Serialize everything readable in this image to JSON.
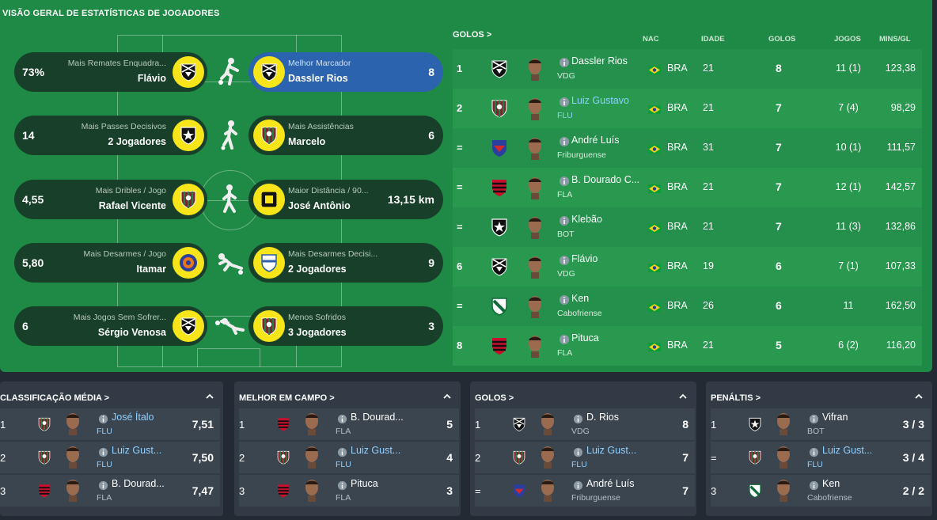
{
  "page_title": "VISÃO GERAL DE ESTATÍSTICAS DE JOGADORES",
  "colors": {
    "pitch": "#1f8a45",
    "pill": "#173f2a",
    "active": "#2b63ae",
    "badge": "#f7e51a",
    "card": "#313a45",
    "link": "#8fd0ff"
  },
  "stats": [
    {
      "left": {
        "value": "73%",
        "label": "Mais Remates Enquadra...",
        "name": "Flávio",
        "crest": "vasco-crest"
      },
      "figure": "shooting-player-icon",
      "right": {
        "value": "8",
        "label": "Melhor Marcador",
        "name": "Dassler Rios",
        "crest": "vasco-crest",
        "active": true
      }
    },
    {
      "left": {
        "value": "14",
        "label": "Mais Passes Decisivos",
        "name": "2 Jogadores",
        "crest": "botafogo-crest"
      },
      "figure": "passing-player-icon",
      "right": {
        "value": "6",
        "label": "Mais Assistências",
        "name": "Marcelo",
        "crest": "fluminense-crest"
      }
    },
    {
      "left": {
        "value": "4,55",
        "label": "Mais Dribles / Jogo",
        "name": "Rafael Vicente",
        "crest": "fluminense-crest"
      },
      "figure": "running-player-icon",
      "right": {
        "value": "13,15 km",
        "label": "Maior Distância / 90...",
        "name": "José Antônio",
        "crest": "volta-redonda-crest"
      }
    },
    {
      "left": {
        "value": "5,80",
        "label": "Mais Desarmes / Jogo",
        "name": "Itamar",
        "crest": "madureira-crest"
      },
      "figure": "tackling-player-icon",
      "right": {
        "value": "9",
        "label": "Mais Desarmes Decisi...",
        "name": "2 Jogadores",
        "crest": "nova-iguacu-crest"
      }
    },
    {
      "left": {
        "value": "6",
        "label": "Mais Jogos Sem Sofrer...",
        "name": "Sérgio Venosa",
        "crest": "vasco-crest"
      },
      "figure": "goalkeeper-dive-icon",
      "right": {
        "value": "3",
        "label": "Menos Sofridos",
        "name": "3 Jogadores",
        "crest": "fluminense-crest"
      }
    }
  ],
  "golos_table": {
    "title": "GOLOS >",
    "headers": {
      "nac": "NAC",
      "idade": "IDADE",
      "golos": "GOLOS",
      "jogos": "JOGOS",
      "mins": "MINS/GL"
    },
    "rows": [
      {
        "pos": "1",
        "crest": "vasco-crest",
        "name": "Dassler Rios",
        "club": "VDG",
        "link": false,
        "nac": "BRA",
        "age": "21",
        "goals": "8",
        "games": "11 (1)",
        "mins": "123,38"
      },
      {
        "pos": "2",
        "crest": "fluminense-crest",
        "name": "Luiz Gustavo",
        "club": "FLU",
        "link": true,
        "nac": "BRA",
        "age": "21",
        "goals": "7",
        "games": "7 (4)",
        "mins": "98,29"
      },
      {
        "pos": "=",
        "crest": "friburguense-crest",
        "name": "André Luís",
        "club": "Friburguense",
        "link": false,
        "nac": "BRA",
        "age": "31",
        "goals": "7",
        "games": "10 (1)",
        "mins": "111,57"
      },
      {
        "pos": "=",
        "crest": "flamengo-crest",
        "name": "B. Dourado C...",
        "club": "FLA",
        "link": false,
        "nac": "BRA",
        "age": "21",
        "goals": "7",
        "games": "12 (1)",
        "mins": "142,57"
      },
      {
        "pos": "=",
        "crest": "botafogo-crest",
        "name": "Klebão",
        "club": "BOT",
        "link": false,
        "nac": "BRA",
        "age": "21",
        "goals": "7",
        "games": "11 (3)",
        "mins": "132,86"
      },
      {
        "pos": "6",
        "crest": "vasco-crest",
        "name": "Flávio",
        "club": "VDG",
        "link": false,
        "nac": "BRA",
        "age": "19",
        "goals": "6",
        "games": "7 (1)",
        "mins": "107,33"
      },
      {
        "pos": "=",
        "crest": "cabofriense-crest",
        "name": "Ken",
        "club": "Cabofriense",
        "link": false,
        "nac": "BRA",
        "age": "26",
        "goals": "6",
        "games": "11",
        "mins": "162,50"
      },
      {
        "pos": "8",
        "crest": "flamengo-crest",
        "name": "Pituca",
        "club": "FLA",
        "link": false,
        "nac": "BRA",
        "age": "21",
        "goals": "5",
        "games": "6 (2)",
        "mins": "116,20"
      }
    ]
  },
  "cards": [
    {
      "title": "CLASSIFICAÇÃO MÉDIA >",
      "rows": [
        {
          "pos": "1",
          "crest": "fluminense-crest",
          "name": "José Ítalo",
          "club": "FLU",
          "link": true,
          "value": "7,51"
        },
        {
          "pos": "2",
          "crest": "fluminense-crest",
          "name": "Luiz Gust...",
          "club": "FLU",
          "link": true,
          "value": "7,50"
        },
        {
          "pos": "3",
          "crest": "flamengo-crest",
          "name": "B. Dourad...",
          "club": "FLA",
          "link": false,
          "value": "7,47"
        }
      ]
    },
    {
      "title": "MELHOR EM CAMPO >",
      "rows": [
        {
          "pos": "1",
          "crest": "flamengo-crest",
          "name": "B. Dourad...",
          "club": "FLA",
          "link": false,
          "value": "5"
        },
        {
          "pos": "2",
          "crest": "fluminense-crest",
          "name": "Luiz Gust...",
          "club": "FLU",
          "link": true,
          "value": "4"
        },
        {
          "pos": "3",
          "crest": "flamengo-crest",
          "name": "Pituca",
          "club": "FLA",
          "link": false,
          "value": "3"
        }
      ]
    },
    {
      "title": "GOLOS >",
      "rows": [
        {
          "pos": "1",
          "crest": "vasco-crest",
          "name": "D. Rios",
          "club": "VDG",
          "link": false,
          "value": "8"
        },
        {
          "pos": "2",
          "crest": "fluminense-crest",
          "name": "Luiz Gust...",
          "club": "FLU",
          "link": true,
          "value": "7"
        },
        {
          "pos": "=",
          "crest": "friburguense-crest",
          "name": "André Luís",
          "club": "Friburguense",
          "link": false,
          "value": "7"
        }
      ]
    },
    {
      "title": "PENÁLTIS >",
      "rows": [
        {
          "pos": "1",
          "crest": "botafogo-crest",
          "name": "Vifran",
          "club": "BOT",
          "link": false,
          "value": "3 / 3"
        },
        {
          "pos": "=",
          "crest": "fluminense-crest",
          "name": "Luiz Gust...",
          "club": "FLU",
          "link": true,
          "value": "3 / 4"
        },
        {
          "pos": "3",
          "crest": "cabofriense-crest",
          "name": "Ken",
          "club": "Cabofriense",
          "link": false,
          "value": "2 / 2"
        }
      ]
    }
  ]
}
